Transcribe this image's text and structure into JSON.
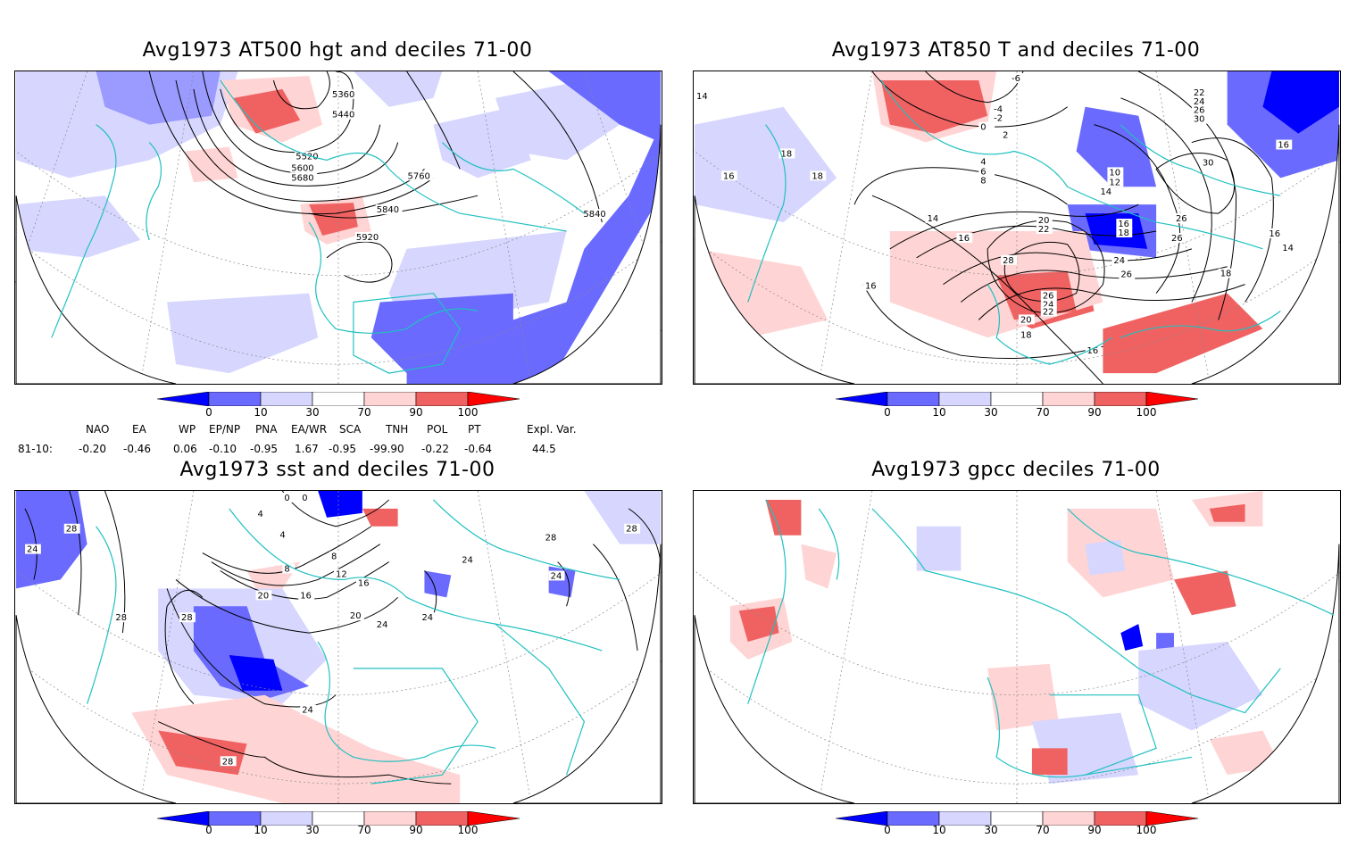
{
  "panels": [
    {
      "title": "Avg1973 AT500 hgt and deciles 71-00",
      "contour_labels": [
        "5360",
        "5440",
        "5520",
        "5600",
        "5680",
        "5760",
        "5840",
        "5840",
        "5920"
      ]
    },
    {
      "title": "Avg1973 AT850 T and deciles 71-00",
      "contour_labels": [
        "14",
        "18",
        "18",
        "16",
        "16",
        "14",
        "16",
        "-6",
        "-4",
        "-2",
        "0",
        "2",
        "4",
        "6",
        "8",
        "10",
        "12",
        "14",
        "20",
        "22",
        "28",
        "26",
        "24",
        "22",
        "20",
        "18",
        "16",
        "24",
        "16",
        "18",
        "26",
        "26",
        "30",
        "22",
        "24",
        "26",
        "30",
        "26",
        "16",
        "18",
        "14",
        "16"
      ]
    },
    {
      "title": "Avg1973 sst and deciles 71-00",
      "contour_labels": [
        "24",
        "28",
        "28",
        "28",
        "0",
        "0",
        "4",
        "4",
        "8",
        "8",
        "12",
        "16",
        "16",
        "20",
        "20",
        "24",
        "24",
        "24",
        "24",
        "28",
        "28",
        "24",
        "28"
      ]
    },
    {
      "title": "Avg1973 gpcc deciles 71-00",
      "contour_labels": []
    }
  ],
  "colorbar": {
    "labels": [
      "0",
      "10",
      "30",
      "70",
      "90",
      "100"
    ],
    "colors": {
      "strong_blue": "#0000ff",
      "mid_blue": "#6a6aff",
      "light_blue": "#d6d6ff",
      "white": "#ffffff",
      "light_red": "#ffd4d4",
      "mid_red": "#f06262",
      "strong_red": "#ff0000"
    }
  },
  "indices": {
    "headers": [
      "NAO",
      "EA",
      "WP",
      "EP/NP",
      "PNA",
      "EA/WR",
      "SCA",
      "TNH",
      "POL",
      "PT",
      "Expl. Var."
    ],
    "row_label": "81-10:",
    "values": [
      "-0.20",
      "-0.46",
      "0.06",
      "-0.10",
      "-0.95",
      "1.67",
      "-0.95",
      "-99.90",
      "-0.22",
      "-0.64",
      "44.5"
    ]
  },
  "colors": {
    "coast": "#20c0c0",
    "contour": "#000000",
    "grid": "#888888"
  }
}
